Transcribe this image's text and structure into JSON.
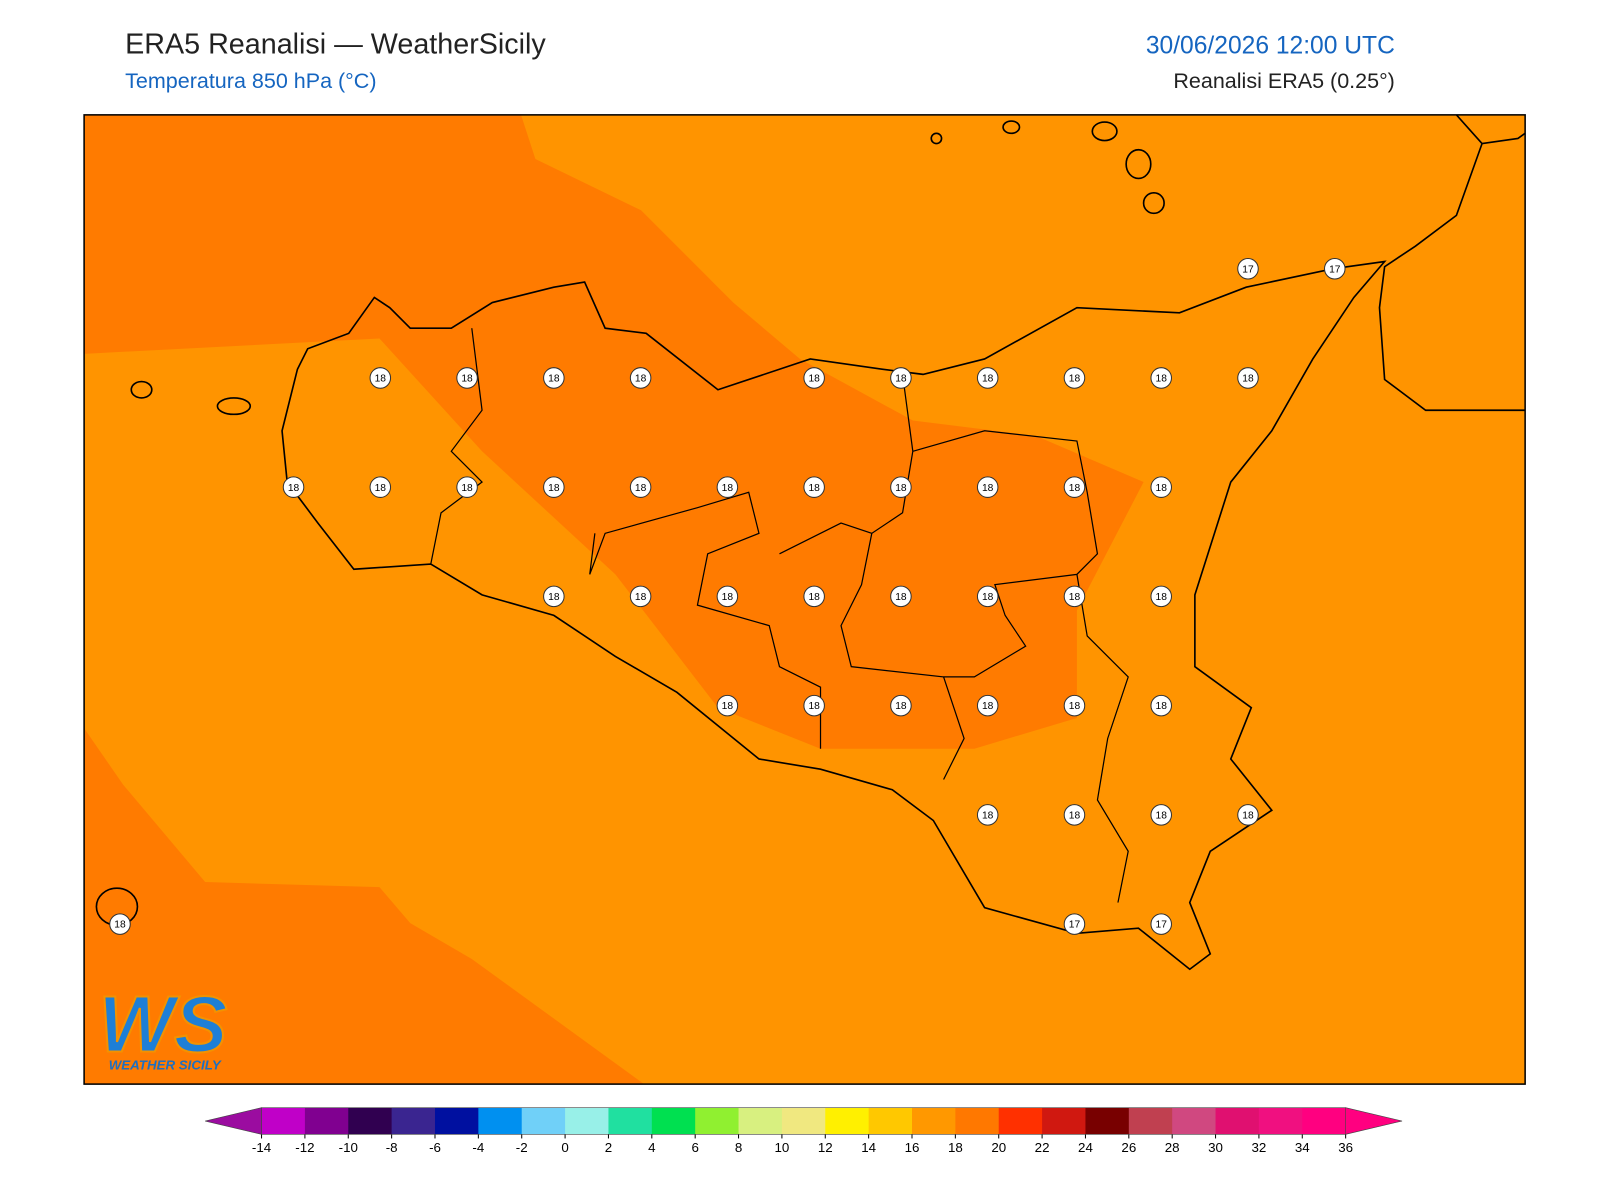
{
  "header": {
    "title": "ERA5 Reanalisi — WeatherSicily",
    "subtitle": "Temperatura 850 hPa (°C)",
    "datetime": "30/06/2026 12:00 UTC",
    "source": "Reanalisi ERA5 (0.25°)"
  },
  "map": {
    "grid": [
      [
        null,
        null,
        null,
        null,
        null,
        null,
        null,
        null,
        null,
        null,
        null,
        null,
        null,
        17,
        17
      ],
      [
        null,
        null,
        null,
        18,
        18,
        18,
        18,
        null,
        18,
        18,
        18,
        18,
        18,
        18,
        null
      ],
      [
        null,
        null,
        18,
        18,
        18,
        18,
        18,
        18,
        18,
        18,
        18,
        18,
        18,
        null,
        null
      ],
      [
        null,
        null,
        null,
        null,
        null,
        18,
        18,
        18,
        18,
        18,
        18,
        18,
        18,
        null,
        null
      ],
      [
        null,
        null,
        null,
        null,
        null,
        null,
        null,
        18,
        18,
        18,
        18,
        18,
        18,
        null,
        null
      ],
      [
        null,
        null,
        null,
        null,
        null,
        null,
        null,
        null,
        null,
        null,
        18,
        18,
        18,
        18,
        null
      ],
      [
        18,
        null,
        null,
        null,
        null,
        null,
        null,
        null,
        null,
        null,
        null,
        17,
        17,
        null,
        null
      ]
    ]
  },
  "logo": {
    "mark": "WS",
    "name": "WEATHER SICILY"
  },
  "colorbar": {
    "ticks": [
      -14,
      -12,
      -10,
      -8,
      -6,
      -4,
      -2,
      0,
      2,
      4,
      6,
      8,
      10,
      12,
      14,
      16,
      18,
      20,
      22,
      24,
      26,
      28,
      30,
      32,
      34,
      36
    ],
    "colors": [
      "#c000c8",
      "#800090",
      "#300050",
      "#3a2590",
      "#0010a0",
      "#0090f0",
      "#70d0f8",
      "#98f0e8",
      "#20e0a0",
      "#00e050",
      "#90f030",
      "#d8f080",
      "#f0e880",
      "#fff000",
      "#ffc800",
      "#ff9800",
      "#ff7800",
      "#ff3000",
      "#d01810",
      "#780000",
      "#c04050",
      "#d04880",
      "#e01070",
      "#f01080",
      "#ff0080"
    ],
    "under": "#9b0ca0",
    "over": "#ff0080"
  }
}
